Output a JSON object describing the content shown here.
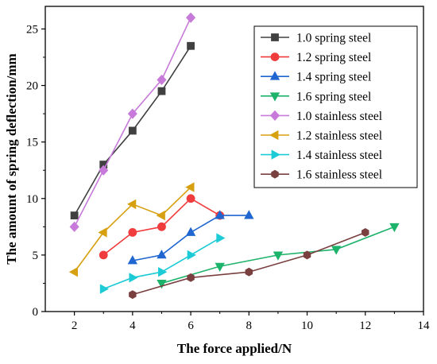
{
  "chart_data": {
    "type": "line",
    "xlabel": "The force applied/N",
    "ylabel": "The amount of spring deflection/mm",
    "xlim": [
      1,
      14
    ],
    "ylim": [
      0,
      27
    ],
    "xticks": [
      2,
      4,
      6,
      8,
      10,
      12,
      14
    ],
    "yticks": [
      0,
      5,
      10,
      15,
      20,
      25
    ],
    "legend_position": "top-right",
    "series": [
      {
        "name": "1.0 spring steel",
        "color": "#404040",
        "marker": "square",
        "x": [
          2,
          3,
          4,
          5,
          6
        ],
        "y": [
          8.5,
          13,
          16,
          19.5,
          23.5
        ]
      },
      {
        "name": "1.2 spring steel",
        "color": "#f03c3c",
        "marker": "circle",
        "x": [
          3,
          4,
          5,
          6,
          7
        ],
        "y": [
          5,
          7,
          7.5,
          10,
          8.5
        ]
      },
      {
        "name": "1.4 spring steel",
        "color": "#1f66d1",
        "marker": "triangle-up",
        "x": [
          4,
          5,
          6,
          7,
          8
        ],
        "y": [
          4.5,
          5,
          7,
          8.5,
          8.5
        ]
      },
      {
        "name": "1.6 spring steel",
        "color": "#1db36a",
        "marker": "triangle-down",
        "x": [
          5,
          7,
          9,
          11,
          13
        ],
        "y": [
          2.5,
          4,
          5,
          5.5,
          7.5
        ]
      },
      {
        "name": "1.0 stainless steel",
        "color": "#c77ad9",
        "marker": "diamond",
        "x": [
          2,
          3,
          4,
          5,
          6
        ],
        "y": [
          7.5,
          12.5,
          17.5,
          20.5,
          26
        ]
      },
      {
        "name": "1.2 stainless steel",
        "color": "#d6a010",
        "marker": "triangle-left",
        "x": [
          2,
          3,
          4,
          5,
          6
        ],
        "y": [
          3.5,
          7,
          9.5,
          8.5,
          11
        ]
      },
      {
        "name": "1.4 stainless steel",
        "color": "#1ccbd6",
        "marker": "triangle-right",
        "x": [
          3,
          4,
          5,
          6,
          7
        ],
        "y": [
          2,
          3,
          3.5,
          5,
          6.5
        ]
      },
      {
        "name": "1.6 stainless steel",
        "color": "#7a3f3f",
        "marker": "hexagon",
        "x": [
          4,
          6,
          8,
          10,
          12
        ],
        "y": [
          1.5,
          3,
          3.5,
          5,
          7
        ]
      }
    ]
  }
}
